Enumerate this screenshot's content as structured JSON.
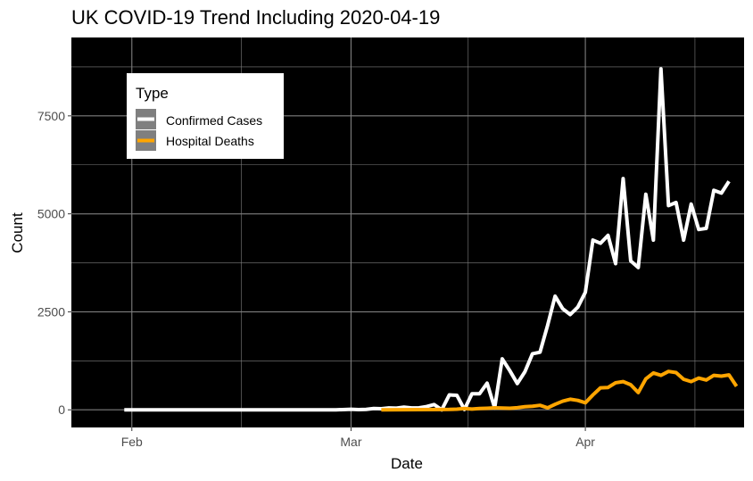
{
  "chart_data": {
    "type": "line",
    "title": "UK COVID-19 Trend Including 2020-04-19",
    "xlabel": "Date",
    "ylabel": "Count",
    "xlim": [
      "2020-01-24",
      "2020-04-22"
    ],
    "ylim": [
      -450,
      9500
    ],
    "x_ticks": [
      {
        "date": "2020-02-01",
        "label": "Feb"
      },
      {
        "date": "2020-03-01",
        "label": "Mar"
      },
      {
        "date": "2020-04-01",
        "label": "Apr"
      }
    ],
    "y_ticks": [
      0,
      2500,
      5000,
      7500
    ],
    "grid": true,
    "background": "#000000",
    "grid_color": "#7f7f7f",
    "legend": {
      "title": "Type",
      "placement": "top-left inside plot"
    },
    "series": [
      {
        "name": "Confirmed Cases",
        "color": "#ffffff",
        "points": [
          [
            "2020-01-31",
            0
          ],
          [
            "2020-02-01",
            0
          ],
          [
            "2020-02-10",
            0
          ],
          [
            "2020-02-20",
            0
          ],
          [
            "2020-02-28",
            0
          ],
          [
            "2020-03-01",
            13
          ],
          [
            "2020-03-02",
            4
          ],
          [
            "2020-03-03",
            11
          ],
          [
            "2020-03-04",
            34
          ],
          [
            "2020-03-05",
            29
          ],
          [
            "2020-03-06",
            48
          ],
          [
            "2020-03-07",
            43
          ],
          [
            "2020-03-08",
            67
          ],
          [
            "2020-03-09",
            48
          ],
          [
            "2020-03-10",
            52
          ],
          [
            "2020-03-11",
            83
          ],
          [
            "2020-03-12",
            134
          ],
          [
            "2020-03-13",
            0
          ],
          [
            "2020-03-14",
            380
          ],
          [
            "2020-03-15",
            370
          ],
          [
            "2020-03-16",
            10
          ],
          [
            "2020-03-17",
            410
          ],
          [
            "2020-03-18",
            410
          ],
          [
            "2020-03-19",
            680
          ],
          [
            "2020-03-20",
            50
          ],
          [
            "2020-03-21",
            1300
          ],
          [
            "2020-03-22",
            1000
          ],
          [
            "2020-03-23",
            670
          ],
          [
            "2020-03-24",
            970
          ],
          [
            "2020-03-25",
            1430
          ],
          [
            "2020-03-26",
            1470
          ],
          [
            "2020-03-27",
            2150
          ],
          [
            "2020-03-28",
            2900
          ],
          [
            "2020-03-29",
            2580
          ],
          [
            "2020-03-30",
            2430
          ],
          [
            "2020-03-31",
            2620
          ],
          [
            "2020-04-01",
            3000
          ],
          [
            "2020-04-02",
            4330
          ],
          [
            "2020-04-03",
            4250
          ],
          [
            "2020-04-04",
            4450
          ],
          [
            "2020-04-05",
            3730
          ],
          [
            "2020-04-06",
            5900
          ],
          [
            "2020-04-07",
            3800
          ],
          [
            "2020-04-08",
            3630
          ],
          [
            "2020-04-09",
            5500
          ],
          [
            "2020-04-10",
            4330
          ],
          [
            "2020-04-11",
            8700
          ],
          [
            "2020-04-12",
            5210
          ],
          [
            "2020-04-13",
            5290
          ],
          [
            "2020-04-14",
            4330
          ],
          [
            "2020-04-15",
            5250
          ],
          [
            "2020-04-16",
            4600
          ],
          [
            "2020-04-17",
            4630
          ],
          [
            "2020-04-18",
            5600
          ],
          [
            "2020-04-19",
            5530
          ],
          [
            "2020-04-20",
            5830
          ]
        ]
      },
      {
        "name": "Hospital Deaths",
        "color": "#ffa500",
        "points": [
          [
            "2020-03-05",
            0
          ],
          [
            "2020-03-10",
            5
          ],
          [
            "2020-03-13",
            8
          ],
          [
            "2020-03-14",
            10
          ],
          [
            "2020-03-15",
            18
          ],
          [
            "2020-03-16",
            35
          ],
          [
            "2020-03-17",
            20
          ],
          [
            "2020-03-18",
            33
          ],
          [
            "2020-03-19",
            40
          ],
          [
            "2020-03-20",
            50
          ],
          [
            "2020-03-21",
            45
          ],
          [
            "2020-03-22",
            40
          ],
          [
            "2020-03-23",
            55
          ],
          [
            "2020-03-24",
            80
          ],
          [
            "2020-03-25",
            90
          ],
          [
            "2020-03-26",
            115
          ],
          [
            "2020-03-27",
            50
          ],
          [
            "2020-03-28",
            140
          ],
          [
            "2020-03-29",
            220
          ],
          [
            "2020-03-30",
            270
          ],
          [
            "2020-03-31",
            240
          ],
          [
            "2020-04-01",
            180
          ],
          [
            "2020-04-02",
            380
          ],
          [
            "2020-04-03",
            560
          ],
          [
            "2020-04-04",
            570
          ],
          [
            "2020-04-05",
            690
          ],
          [
            "2020-04-06",
            720
          ],
          [
            "2020-04-07",
            640
          ],
          [
            "2020-04-08",
            440
          ],
          [
            "2020-04-09",
            790
          ],
          [
            "2020-04-10",
            940
          ],
          [
            "2020-04-11",
            880
          ],
          [
            "2020-04-12",
            980
          ],
          [
            "2020-04-13",
            950
          ],
          [
            "2020-04-14",
            780
          ],
          [
            "2020-04-15",
            720
          ],
          [
            "2020-04-16",
            810
          ],
          [
            "2020-04-17",
            760
          ],
          [
            "2020-04-18",
            880
          ],
          [
            "2020-04-19",
            860
          ],
          [
            "2020-04-20",
            890
          ],
          [
            "2020-04-21",
            600
          ]
        ]
      }
    ]
  }
}
